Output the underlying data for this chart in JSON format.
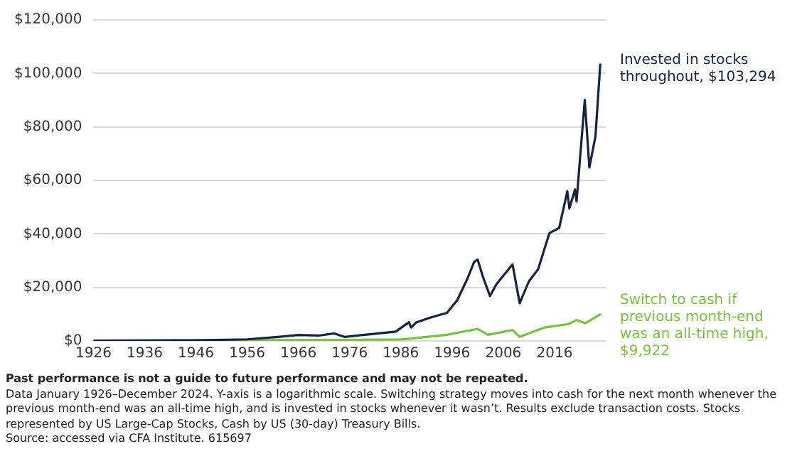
{
  "chart_data": {
    "type": "line",
    "annotations": [
      "Past performance is not a guide to future performance and may not be repeated.",
      "Data January 1926–December 2024. Y-axis is a logarithmic scale. Switching strategy moves into cash for the next month whenever the previous month-end was an all-time high, and is invested in stocks whenever it wasn’t. Results exclude transaction costs. Stocks represented by US Large-Cap Stocks, Cash by US (30-day) Treasury Bills.",
      "Source: accessed via CFA Institute. 615697"
    ],
    "series": [
      {
        "name": "Invested in stocks throughout, $103,294",
        "color": "#16233f",
        "x": [
          1926,
          1936,
          1946,
          1956,
          1962,
          1966,
          1970,
          1973,
          1975,
          1980,
          1985,
          1987.6,
          1988,
          1989,
          1991.7,
          1995,
          1997,
          1999,
          2000.3,
          2001,
          2002,
          2003.4,
          2004.7,
          2007.8,
          2009.2,
          2011,
          2012.8,
          2015,
          2016.9,
          2018.5,
          2018.9,
          2020,
          2020.3,
          2021.9,
          2022.8,
          2024,
          2024.92
        ],
        "values": [
          100,
          150,
          250,
          600,
          1500,
          2200,
          2000,
          2800,
          1500,
          2500,
          3500,
          7000,
          5000,
          6900,
          8700,
          10500,
          15200,
          23300,
          29500,
          30400,
          24100,
          16800,
          21300,
          28600,
          14100,
          22300,
          26800,
          40300,
          42200,
          56000,
          49500,
          56600,
          52100,
          90100,
          64800,
          76600,
          103294
        ]
      },
      {
        "name": "Switch to cash if previous month-end was an all-time high, $9,922",
        "color": "#7ac143",
        "x": [
          1926,
          1956,
          1976,
          1986.3,
          1995,
          2001,
          2003,
          2007.8,
          2009.2,
          2014,
          2018.7,
          2020.3,
          2022,
          2024.92
        ],
        "values": [
          100,
          300,
          400,
          540,
          2300,
          4500,
          2300,
          4100,
          1500,
          5000,
          6300,
          7800,
          6600,
          9922
        ]
      }
    ],
    "xlim": [
      1926,
      2026
    ],
    "xticks": [
      1926,
      1936,
      1946,
      1956,
      1966,
      1976,
      1986,
      1996,
      2006,
      2016
    ],
    "ylim": [
      0,
      120000
    ],
    "yticks": [
      {
        "value": 0,
        "label": "$0"
      },
      {
        "value": 20000,
        "label": "$20,000"
      },
      {
        "value": 40000,
        "label": "$40,000"
      },
      {
        "value": 60000,
        "label": "$60,000"
      },
      {
        "value": 80000,
        "label": "$80,000"
      },
      {
        "value": 100000,
        "label": "$100,000"
      },
      {
        "value": 120000,
        "label": "$120,000"
      }
    ],
    "grid": "y",
    "legend": false,
    "marker": "none",
    "line_style": "solid"
  }
}
